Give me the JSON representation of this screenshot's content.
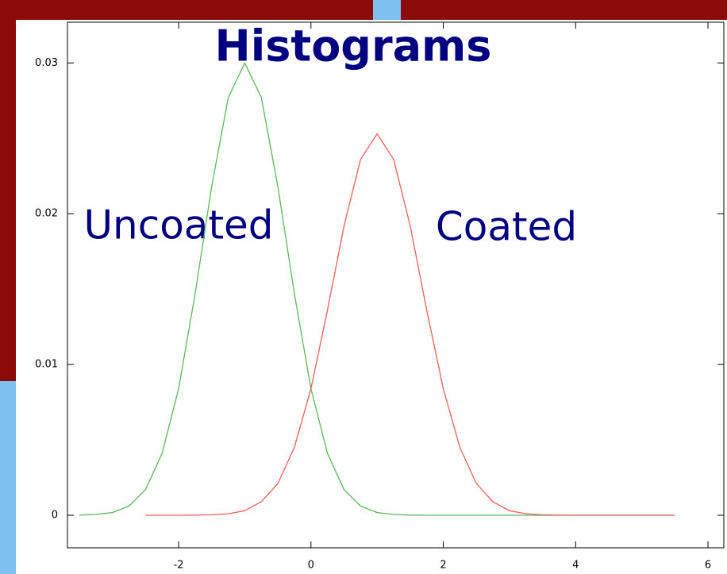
{
  "chart_data": {
    "type": "line",
    "title": "Histograms",
    "annotations": [
      "Uncoated",
      "Coated"
    ],
    "x": [
      -3.5,
      -3.25,
      -3,
      -2.75,
      -2.5,
      -2.25,
      -2,
      -1.75,
      -1.5,
      -1.25,
      -1,
      -0.75,
      -0.5,
      -0.25,
      0,
      0.25,
      0.5,
      0.75,
      1,
      1.25,
      1.5,
      1.75,
      2,
      2.25,
      2.5,
      2.75,
      3,
      3.25,
      3.5,
      3.75,
      4,
      4.25,
      4.5,
      4.75,
      5,
      5.25,
      5.5
    ],
    "series": [
      {
        "name": "Uncoated",
        "color": "#5cb85c",
        "values": [
          1e-05,
          5e-05,
          0.00018,
          0.00061,
          0.0017,
          0.0041,
          0.0084,
          0.0147,
          0.0218,
          0.0277,
          0.03,
          0.0277,
          0.0218,
          0.0147,
          0.0084,
          0.0041,
          0.0017,
          0.00061,
          0.00018,
          5e-05,
          1e-05,
          0,
          0,
          0,
          0,
          0,
          0,
          0,
          0,
          0,
          0,
          0,
          0,
          0,
          0,
          0,
          0
        ]
      },
      {
        "name": "Coated",
        "color": "#f0605a",
        "values": [
          null,
          null,
          null,
          null,
          0,
          0,
          0,
          1e-05,
          3e-05,
          0.0001,
          0.0003,
          0.0009,
          0.0021,
          0.0045,
          0.0084,
          0.0136,
          0.0192,
          0.0236,
          0.0253,
          0.0236,
          0.0192,
          0.0136,
          0.0084,
          0.0045,
          0.0021,
          0.0009,
          0.0003,
          0.0001,
          3e-05,
          1e-05,
          0,
          0,
          0,
          0,
          0,
          0,
          0
        ]
      }
    ],
    "xlim": [
      -3.68,
      6.24
    ],
    "ylim": [
      -0.00216,
      0.0327
    ],
    "xticks": [
      -2,
      0,
      2,
      4,
      6
    ],
    "yticks": [
      0,
      0.01,
      0.02,
      0.03
    ]
  }
}
